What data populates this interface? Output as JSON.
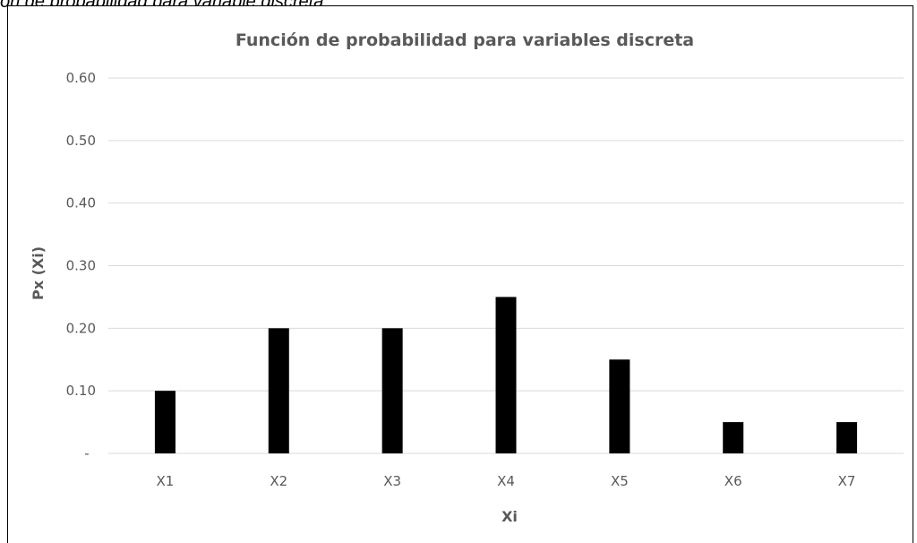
{
  "caption": "ón de probabilidad para variable discreta",
  "chart_data": {
    "type": "bar",
    "title": "Función de probabilidad para variables discreta",
    "xlabel": "Xi",
    "ylabel": "Px (Xi)",
    "categories": [
      "X1",
      "X2",
      "X3",
      "X4",
      "X5",
      "X6",
      "X7"
    ],
    "values": [
      0.1,
      0.2,
      0.2,
      0.25,
      0.15,
      0.05,
      0.05
    ],
    "ylim": [
      0,
      0.6
    ],
    "yticks": [
      {
        "value": 0,
        "label": "-"
      },
      {
        "value": 0.1,
        "label": "0.10"
      },
      {
        "value": 0.2,
        "label": "0.20"
      },
      {
        "value": 0.3,
        "label": "0.30"
      },
      {
        "value": 0.4,
        "label": "0.40"
      },
      {
        "value": 0.5,
        "label": "0.50"
      },
      {
        "value": 0.6,
        "label": "0.60"
      }
    ],
    "grid": true,
    "legend": "none",
    "bar_color": "#000000",
    "grid_color": "#d9d9d9",
    "text_color": "#595959"
  }
}
